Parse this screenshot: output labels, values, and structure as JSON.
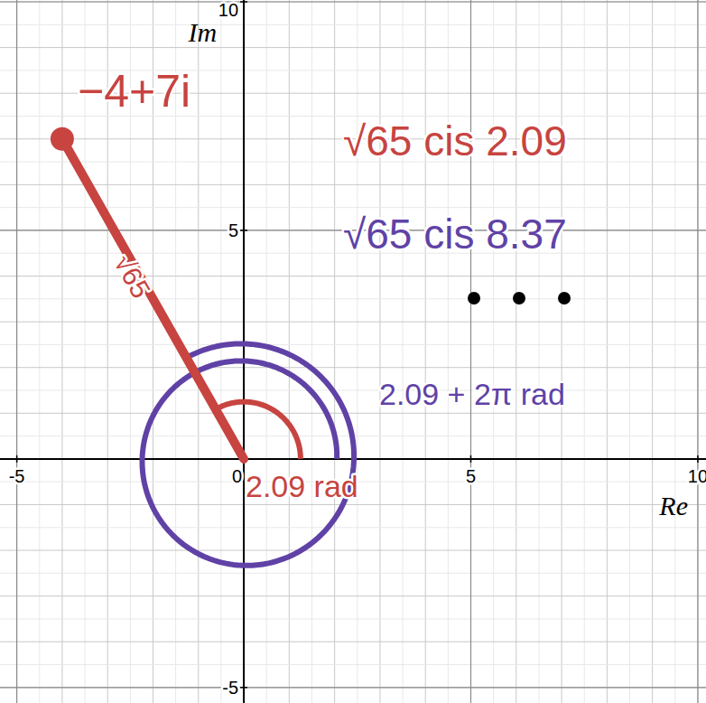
{
  "chart_data": {
    "type": "scatter",
    "xlabel": "Re",
    "ylabel": "Im",
    "xlim": [
      -5.37,
      10.18
    ],
    "ylim": [
      -5.34,
      10.04
    ],
    "xticks": [
      -5,
      0,
      5,
      10
    ],
    "yticks": [
      -5,
      0,
      5,
      10
    ],
    "grid": true,
    "series": [
      {
        "name": "−4+7i",
        "color": "#c74440",
        "x": [
          -4
        ],
        "values": [
          7
        ]
      }
    ],
    "modulus_label": "√65",
    "angles": [
      {
        "label": "2.09 rad",
        "value": 2.09,
        "color": "#c74440"
      },
      {
        "label": "2.09 + 2π rad",
        "value": 8.37,
        "color": "#6042a6"
      }
    ],
    "forms": [
      {
        "label": "√65 cis 2.09",
        "color": "#c74440"
      },
      {
        "label": "√65 cis 8.37",
        "color": "#6042a6"
      }
    ]
  }
}
